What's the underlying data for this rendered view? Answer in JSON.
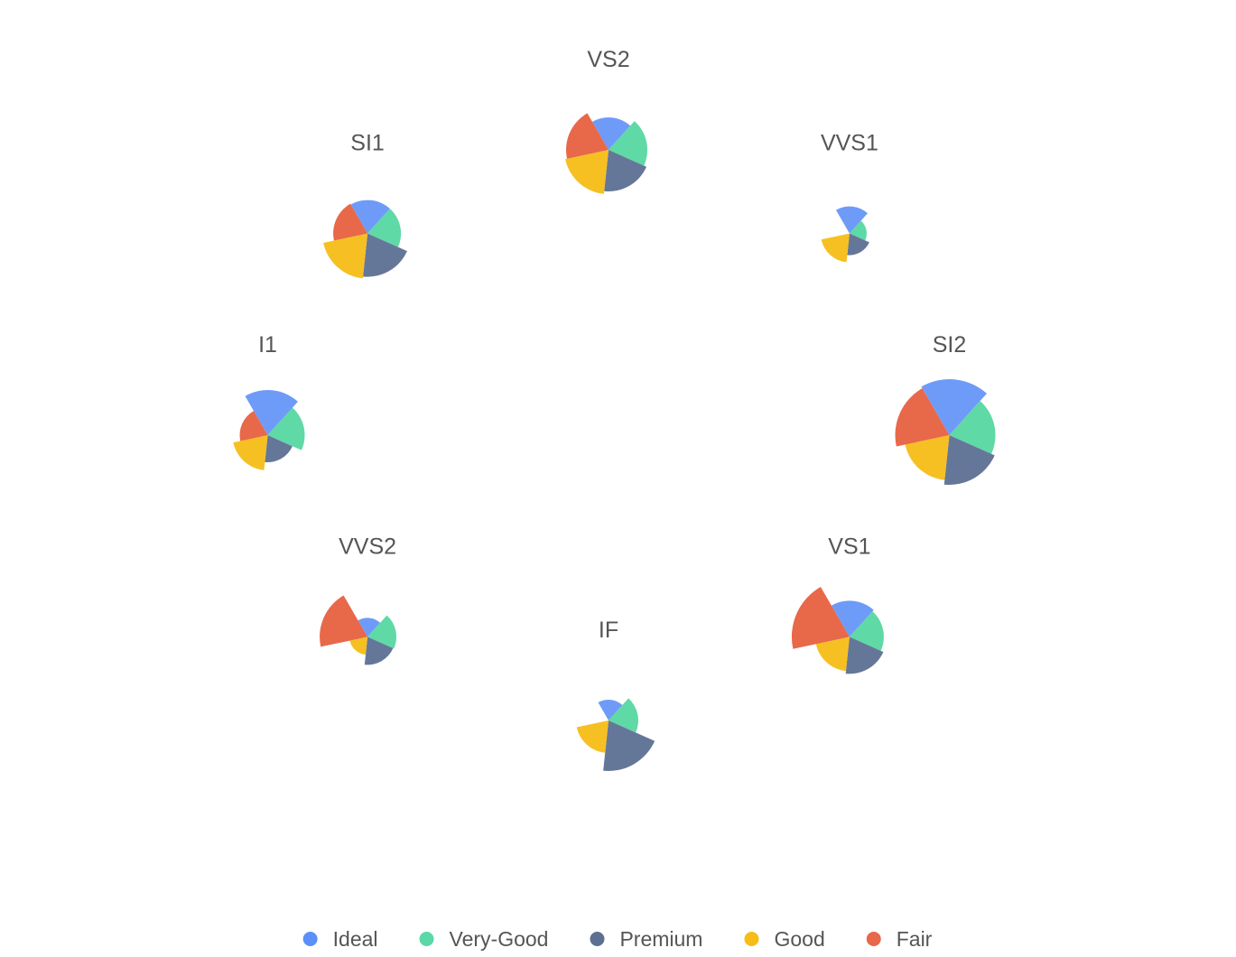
{
  "chart_data": {
    "type": "nightingale-rose-grid",
    "legend": {
      "placement": "bottom-center",
      "items": [
        "Ideal",
        "Very-Good",
        "Premium",
        "Good",
        "Fair"
      ]
    },
    "colors": {
      "Ideal": "#6e9bf8",
      "Very-Good": "#5fd9a6",
      "Premium": "#657798",
      "Good": "#f6c022",
      "Fair": "#e8684a"
    },
    "legend_marker_colors": {
      "Ideal": "#5b8ff9",
      "Very-Good": "#5ad8a6",
      "Premium": "#5d7092",
      "Good": "#f6bd16",
      "Fair": "#e8684a"
    },
    "slice_order": [
      "Ideal",
      "Very-Good",
      "Premium",
      "Good",
      "Fair"
    ],
    "charts": [
      {
        "label": "VS2",
        "values": {
          "Ideal": 36,
          "Very-Good": 43,
          "Premium": 46,
          "Good": 49,
          "Fair": 47
        }
      },
      {
        "label": "VVS1",
        "values": {
          "Ideal": 30,
          "Very-Good": 19,
          "Premium": 24,
          "Good": 32,
          "Fair": 0
        }
      },
      {
        "label": "SI2",
        "values": {
          "Ideal": 62,
          "Very-Good": 51,
          "Premium": 55,
          "Good": 50,
          "Fair": 60
        }
      },
      {
        "label": "VS1",
        "values": {
          "Ideal": 40,
          "Very-Good": 38,
          "Premium": 41,
          "Good": 38,
          "Fair": 64
        }
      },
      {
        "label": "IF",
        "values": {
          "Ideal": 23,
          "Very-Good": 33,
          "Premium": 56,
          "Good": 36,
          "Fair": 0
        }
      },
      {
        "label": "VVS2",
        "values": {
          "Ideal": 21,
          "Very-Good": 32,
          "Premium": 31,
          "Good": 20,
          "Fair": 53
        }
      },
      {
        "label": "I1",
        "values": {
          "Ideal": 50,
          "Very-Good": 41,
          "Premium": 30,
          "Good": 39,
          "Fair": 31
        }
      },
      {
        "label": "SI1",
        "values": {
          "Ideal": 37,
          "Very-Good": 37,
          "Premium": 48,
          "Good": 50,
          "Fair": 38
        }
      }
    ]
  }
}
